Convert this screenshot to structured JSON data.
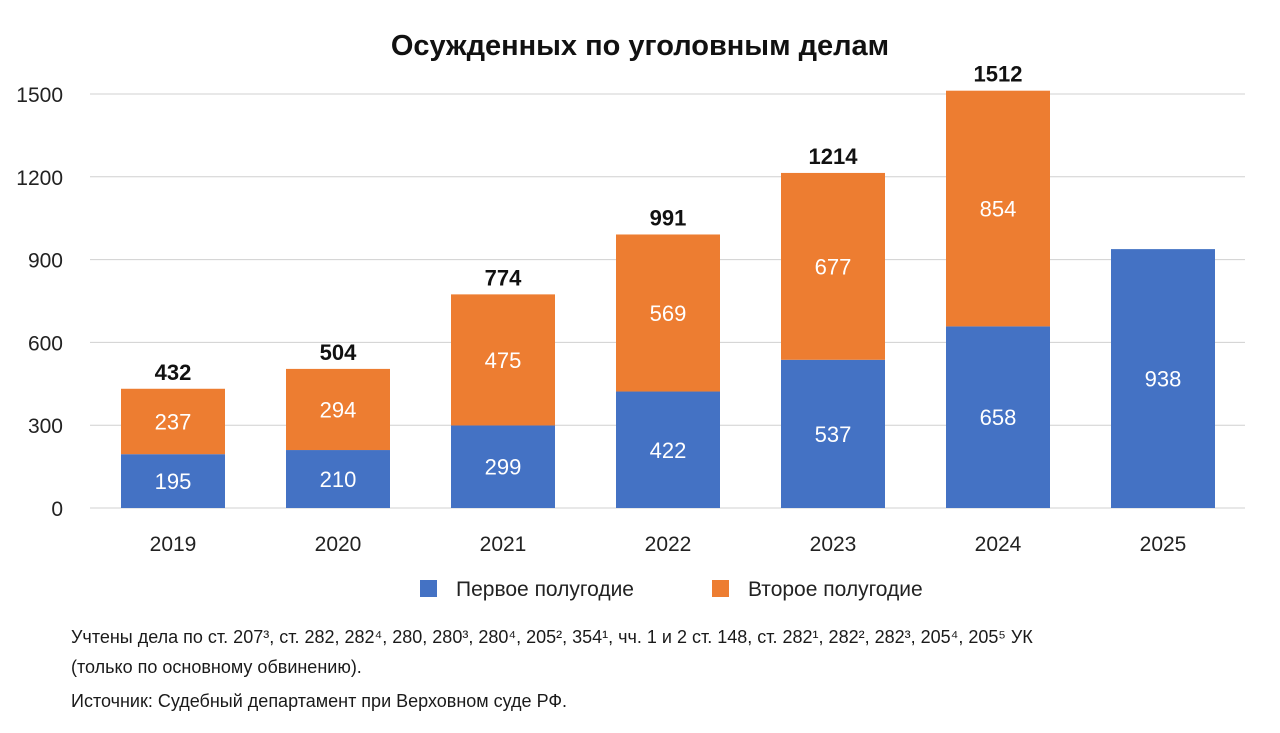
{
  "chart_data": {
    "type": "bar",
    "stacked": true,
    "title": "Осужденных по уголовным делам",
    "categories": [
      "2019",
      "2020",
      "2021",
      "2022",
      "2023",
      "2024",
      "2025"
    ],
    "series": [
      {
        "name": "Первое полугодие",
        "color": "#4472C4",
        "values": [
          195,
          210,
          299,
          422,
          537,
          658,
          938
        ]
      },
      {
        "name": "Второе полугодие",
        "color": "#ED7D31",
        "values": [
          237,
          294,
          475,
          569,
          677,
          854,
          null
        ]
      }
    ],
    "totals": [
      "432",
      "504",
      "774",
      "991",
      "1214",
      "1512",
      null
    ],
    "ylim": [
      0,
      1500
    ],
    "yticks": [
      "0",
      "300",
      "600",
      "900",
      "1200",
      "1500"
    ],
    "grid": true,
    "legend": "bottom"
  },
  "footnote": {
    "line1": "Учтены дела по ст. 207³, ст. 282, 282⁴, 280, 280³, 280⁴, 205², 354¹, чч. 1 и 2 ст. 148, ст. 282¹, 282², 282³, 205⁴, 205⁵ УК",
    "line2": "(только по основному обвинению).",
    "source": "Источник: Судебный департамент при Верховном суде РФ."
  }
}
